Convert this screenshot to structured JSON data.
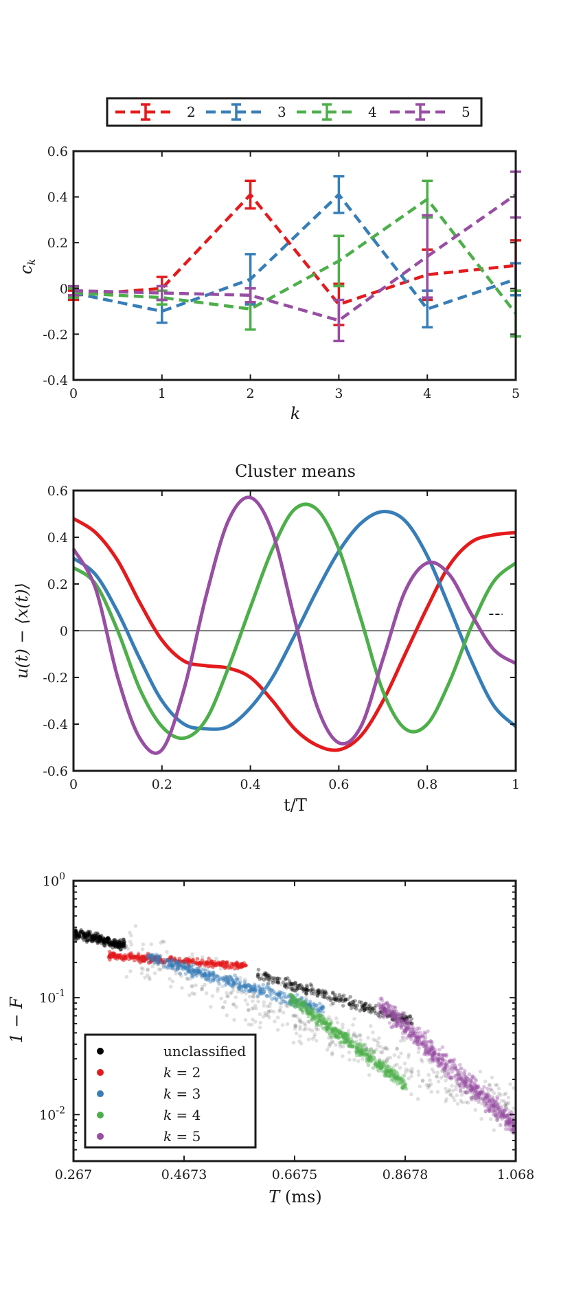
{
  "colors": {
    "red": "#e41a1c",
    "blue": "#377eb8",
    "green": "#4daf4a",
    "purple": "#984ea3",
    "black": "#000000"
  },
  "chart_data": [
    {
      "type": "line",
      "title": "",
      "xlabel": "k",
      "ylabel": "c_k",
      "xlim": [
        0,
        5
      ],
      "ylim": [
        -0.4,
        0.6
      ],
      "xticks": [
        "0",
        "1",
        "2",
        "3",
        "4",
        "5"
      ],
      "yticks": [
        "-0.4",
        "-0.2",
        "0",
        "0.2",
        "0.4",
        "0.6"
      ],
      "legend": "top-outside",
      "line_style": "dashed with error bars",
      "series": [
        {
          "name": "2",
          "color": "#e41a1c",
          "x": [
            0,
            1,
            2,
            3,
            4,
            5
          ],
          "y": [
            -0.03,
            0.0,
            0.41,
            -0.07,
            0.06,
            0.1
          ],
          "err": [
            0.02,
            0.05,
            0.06,
            0.09,
            0.11,
            0.11
          ]
        },
        {
          "name": "3",
          "color": "#377eb8",
          "x": [
            0,
            1,
            2,
            3,
            4,
            5
          ],
          "y": [
            -0.02,
            -0.1,
            0.04,
            0.41,
            -0.09,
            0.04
          ],
          "err": [
            0.02,
            0.05,
            0.11,
            0.08,
            0.08,
            0.07
          ]
        },
        {
          "name": "4",
          "color": "#4daf4a",
          "x": [
            0,
            1,
            2,
            3,
            4,
            5
          ],
          "y": [
            -0.02,
            -0.04,
            -0.09,
            0.12,
            0.39,
            -0.11
          ],
          "err": [
            0.02,
            0.03,
            0.09,
            0.11,
            0.08,
            0.1
          ]
        },
        {
          "name": "5",
          "color": "#984ea3",
          "x": [
            0,
            1,
            2,
            3,
            4,
            5
          ],
          "y": [
            -0.01,
            -0.02,
            -0.03,
            -0.14,
            0.14,
            0.41
          ],
          "err": [
            0.02,
            0.03,
            0.03,
            0.09,
            0.18,
            0.1
          ]
        }
      ]
    },
    {
      "type": "line",
      "title": "Cluster means",
      "xlabel": "t/T",
      "ylabel": "u(t) − ⟨x(t)⟩",
      "xlim": [
        0,
        1
      ],
      "ylim": [
        -0.6,
        0.6
      ],
      "xticks": [
        "0",
        "0.2",
        "0.4",
        "0.6",
        "0.8",
        "1"
      ],
      "yticks": [
        "-0.6",
        "-0.4",
        "-0.2",
        "0",
        "0.2",
        "0.4",
        "0.6"
      ],
      "grid": false,
      "series": [
        {
          "color": "#e41a1c",
          "x": [
            0,
            0.05,
            0.1,
            0.15,
            0.2,
            0.25,
            0.3,
            0.35,
            0.4,
            0.45,
            0.5,
            0.55,
            0.6,
            0.65,
            0.7,
            0.75,
            0.8,
            0.85,
            0.9,
            0.95,
            1.0
          ],
          "y": [
            0.48,
            0.42,
            0.3,
            0.12,
            -0.04,
            -0.13,
            -0.15,
            -0.16,
            -0.2,
            -0.3,
            -0.42,
            -0.49,
            -0.51,
            -0.45,
            -0.3,
            -0.1,
            0.1,
            0.28,
            0.38,
            0.41,
            0.42
          ]
        },
        {
          "color": "#377eb8",
          "x": [
            0,
            0.05,
            0.1,
            0.15,
            0.2,
            0.25,
            0.3,
            0.35,
            0.4,
            0.45,
            0.5,
            0.55,
            0.6,
            0.65,
            0.7,
            0.75,
            0.8,
            0.85,
            0.9,
            0.95,
            1.0
          ],
          "y": [
            0.31,
            0.24,
            0.08,
            -0.12,
            -0.3,
            -0.4,
            -0.42,
            -0.41,
            -0.33,
            -0.2,
            -0.02,
            0.17,
            0.34,
            0.46,
            0.51,
            0.47,
            0.32,
            0.1,
            -0.13,
            -0.32,
            -0.41
          ]
        },
        {
          "color": "#4daf4a",
          "x": [
            0,
            0.05,
            0.1,
            0.15,
            0.2,
            0.25,
            0.3,
            0.35,
            0.4,
            0.45,
            0.5,
            0.55,
            0.6,
            0.65,
            0.7,
            0.75,
            0.8,
            0.85,
            0.9,
            0.95,
            1.0
          ],
          "y": [
            0.27,
            0.2,
            0.0,
            -0.25,
            -0.41,
            -0.46,
            -0.38,
            -0.16,
            0.1,
            0.35,
            0.52,
            0.52,
            0.35,
            0.05,
            -0.26,
            -0.42,
            -0.4,
            -0.22,
            0.02,
            0.21,
            0.29
          ]
        },
        {
          "color": "#984ea3",
          "x": [
            0,
            0.05,
            0.1,
            0.15,
            0.2,
            0.25,
            0.3,
            0.35,
            0.4,
            0.45,
            0.5,
            0.55,
            0.6,
            0.65,
            0.7,
            0.75,
            0.8,
            0.85,
            0.9,
            0.95,
            1.0
          ],
          "y": [
            0.35,
            0.18,
            -0.2,
            -0.46,
            -0.51,
            -0.25,
            0.15,
            0.47,
            0.57,
            0.42,
            0.05,
            -0.32,
            -0.48,
            -0.41,
            -0.12,
            0.17,
            0.29,
            0.24,
            0.07,
            -0.08,
            -0.14
          ]
        }
      ]
    },
    {
      "type": "scatter",
      "title": "",
      "xlabel": "T (ms)",
      "ylabel": "1 − F",
      "xlim": [
        0.267,
        1.068
      ],
      "ylim": [
        0.004,
        1
      ],
      "log_y": true,
      "xticks": [
        "0.267",
        "0.4673",
        "0.6675",
        "0.8678",
        "1.068"
      ],
      "yticks": [
        {
          "base": "10",
          "exp": "0"
        },
        {
          "base": "10",
          "exp": "-1"
        },
        {
          "base": "10",
          "exp": "-2"
        }
      ],
      "legend": "bottom-left",
      "series": [
        {
          "name": "unclassified",
          "color": "#000000"
        },
        {
          "name": "k = 2",
          "color": "#e41a1c"
        },
        {
          "name": "k = 3",
          "color": "#377eb8"
        },
        {
          "name": "k = 4",
          "color": "#4daf4a"
        },
        {
          "name": "k = 5",
          "color": "#984ea3"
        }
      ],
      "clusters": [
        {
          "color": "#000000",
          "x": [
            0.267,
            0.36
          ],
          "log_y": [
            -0.45,
            -0.55
          ],
          "spread": 0.07,
          "n": 240,
          "opacity": 0.45
        },
        {
          "color": "#000000",
          "x": [
            0.36,
            1.068
          ],
          "log_y": [
            -0.6,
            -1.95
          ],
          "spread": 0.35,
          "n": 500,
          "opacity": 0.12
        },
        {
          "color": "#000000",
          "x": [
            0.6,
            0.88
          ],
          "log_y": [
            -0.8,
            -1.2
          ],
          "spread": 0.08,
          "n": 260,
          "opacity": 0.35
        },
        {
          "color": "#e41a1c",
          "x": [
            0.33,
            0.58
          ],
          "log_y": [
            -0.64,
            -0.73
          ],
          "spread": 0.05,
          "n": 300,
          "opacity": 0.55
        },
        {
          "color": "#377eb8",
          "x": [
            0.4,
            0.72
          ],
          "log_y": [
            -0.65,
            -1.1
          ],
          "spread": 0.08,
          "n": 420,
          "opacity": 0.4
        },
        {
          "color": "#4daf4a",
          "x": [
            0.66,
            0.87
          ],
          "log_y": [
            -1.0,
            -1.75
          ],
          "spread": 0.1,
          "n": 460,
          "opacity": 0.4
        },
        {
          "color": "#984ea3",
          "x": [
            0.82,
            1.068
          ],
          "log_y": [
            -1.05,
            -2.1
          ],
          "spread": 0.16,
          "n": 650,
          "opacity": 0.35
        }
      ]
    }
  ]
}
